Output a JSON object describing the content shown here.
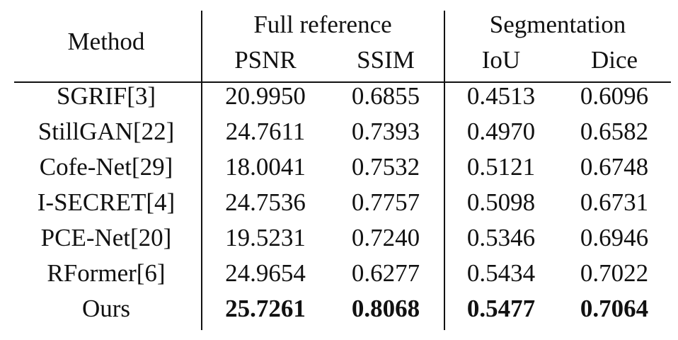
{
  "table": {
    "header": {
      "method": "Method",
      "groups": [
        "Full reference",
        "Segmentation"
      ],
      "columns": [
        "PSNR",
        "SSIM",
        "IoU",
        "Dice"
      ]
    },
    "rows": [
      [
        "SGRIF[3]",
        "20.9950",
        "0.6855",
        "0.4513",
        "0.6096"
      ],
      [
        "StillGAN[22]",
        "24.7611",
        "0.7393",
        "0.4970",
        "0.6582"
      ],
      [
        "Cofe-Net[29]",
        "18.0041",
        "0.7532",
        "0.5121",
        "0.6748"
      ],
      [
        "I-SECRET[4]",
        "24.7536",
        "0.7757",
        "0.5098",
        "0.6731"
      ],
      [
        "PCE-Net[20]",
        "19.5231",
        "0.7240",
        "0.5346",
        "0.6946"
      ],
      [
        "RFormer[6]",
        "24.9654",
        "0.6277",
        "0.5434",
        "0.7022"
      ],
      [
        "Ours",
        "25.7261",
        "0.8068",
        "0.5477",
        "0.7064"
      ]
    ]
  }
}
